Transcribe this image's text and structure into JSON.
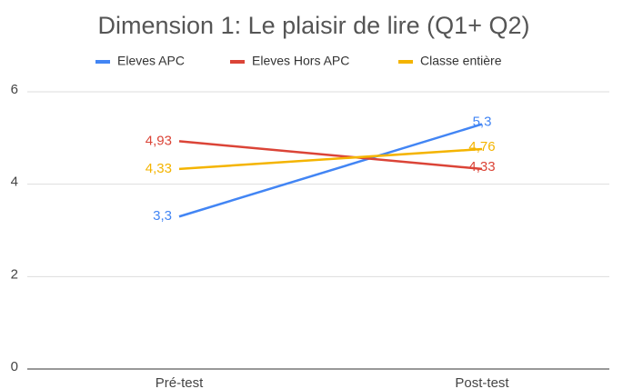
{
  "chart_data": {
    "type": "line",
    "title": "Dimension 1: Le plaisir de lire (Q1+ Q2)",
    "categories": [
      "Pré-test",
      "Post-test"
    ],
    "series": [
      {
        "name": "Eleves APC",
        "color": "#4285f4",
        "values": [
          3.3,
          5.3
        ],
        "value_labels": [
          "3,3",
          "5,3"
        ]
      },
      {
        "name": "Eleves Hors APC",
        "color": "#db4437",
        "values": [
          4.93,
          4.33
        ],
        "value_labels": [
          "4,93",
          "4,33"
        ]
      },
      {
        "name": "Classe entière",
        "color": "#f4b400",
        "values": [
          4.33,
          4.76
        ],
        "value_labels": [
          "4,33",
          "4,76"
        ]
      }
    ],
    "ylim": [
      0,
      6
    ],
    "yticks": [
      0,
      2,
      4,
      6
    ],
    "grid": true,
    "legend": "top"
  }
}
